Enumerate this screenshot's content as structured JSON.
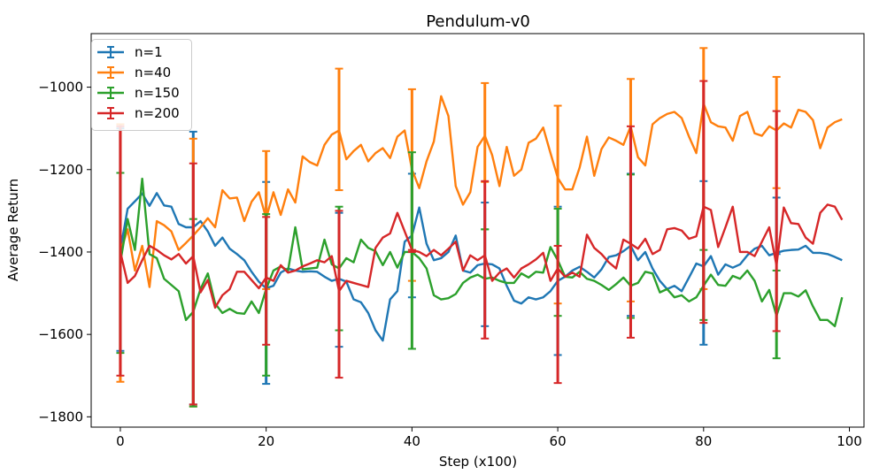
{
  "chart_data": {
    "type": "line",
    "title": "Pendulum-v0",
    "xlabel": "Step (x100)",
    "ylabel": "Average Return",
    "xlim": [
      -4,
      102
    ],
    "ylim": [
      -1825,
      -870
    ],
    "xticks": [
      0,
      20,
      40,
      60,
      80,
      100
    ],
    "yticks": [
      -1800,
      -1600,
      -1400,
      -1200,
      -1000
    ],
    "ytick_labels": [
      "−1800",
      "−1600",
      "−1400",
      "−1200",
      "−1000"
    ],
    "legend_position": "top-left",
    "errorbar_x": [
      0,
      10,
      20,
      30,
      40,
      50,
      60,
      70,
      80,
      90
    ],
    "series": [
      {
        "name": "n=1",
        "color": "#1f77b4",
        "x": [
          0,
          1,
          2,
          3,
          4,
          5,
          6,
          7,
          8,
          9,
          10,
          11,
          12,
          13,
          14,
          15,
          16,
          17,
          18,
          19,
          20,
          21,
          22,
          23,
          24,
          25,
          26,
          27,
          28,
          29,
          30,
          31,
          32,
          33,
          34,
          35,
          36,
          37,
          38,
          39,
          40,
          41,
          42,
          43,
          44,
          45,
          46,
          47,
          48,
          49,
          50,
          51,
          52,
          53,
          54,
          55,
          56,
          57,
          58,
          59,
          60,
          61,
          62,
          63,
          64,
          65,
          66,
          67,
          68,
          69,
          70,
          71,
          72,
          73,
          74,
          75,
          76,
          77,
          78,
          79,
          80,
          81,
          82,
          83,
          84,
          85,
          86,
          87,
          88,
          89,
          90,
          91,
          92,
          93,
          94,
          95,
          96,
          97,
          98,
          99
        ],
        "values": [
          -1395,
          -1295,
          -1277,
          -1258,
          -1288,
          -1257,
          -1287,
          -1290,
          -1332,
          -1340,
          -1340,
          -1325,
          -1350,
          -1385,
          -1365,
          -1392,
          -1405,
          -1420,
          -1448,
          -1472,
          -1488,
          -1482,
          -1450,
          -1440,
          -1445,
          -1448,
          -1447,
          -1448,
          -1460,
          -1470,
          -1465,
          -1472,
          -1515,
          -1522,
          -1548,
          -1590,
          -1615,
          -1515,
          -1495,
          -1375,
          -1360,
          -1292,
          -1380,
          -1420,
          -1415,
          -1400,
          -1360,
          -1445,
          -1450,
          -1432,
          -1428,
          -1430,
          -1440,
          -1482,
          -1518,
          -1525,
          -1510,
          -1515,
          -1510,
          -1495,
          -1470,
          -1460,
          -1445,
          -1436,
          -1448,
          -1462,
          -1442,
          -1412,
          -1408,
          -1398,
          -1385,
          -1420,
          -1400,
          -1440,
          -1470,
          -1490,
          -1482,
          -1495,
          -1462,
          -1428,
          -1435,
          -1410,
          -1455,
          -1430,
          -1438,
          -1430,
          -1408,
          -1392,
          -1385,
          -1408,
          -1402,
          -1397,
          -1395,
          -1394,
          -1385,
          -1402,
          -1402,
          -1405,
          -1412,
          -1420
        ],
        "err_low": [
          -1640,
          -1770,
          -1720,
          -1630,
          -1510,
          -1580,
          -1650,
          -1555,
          -1625,
          -1405
        ],
        "err_high": [
          -1100,
          -1108,
          -1230,
          -1305,
          -1210,
          -1280,
          -1290,
          -1210,
          -1228,
          -1268
        ]
      },
      {
        "name": "n=40",
        "color": "#ff7f0e",
        "x": [
          0,
          1,
          2,
          3,
          4,
          5,
          6,
          7,
          8,
          9,
          10,
          11,
          12,
          13,
          14,
          15,
          16,
          17,
          18,
          19,
          20,
          21,
          22,
          23,
          24,
          25,
          26,
          27,
          28,
          29,
          30,
          31,
          32,
          33,
          34,
          35,
          36,
          37,
          38,
          39,
          40,
          41,
          42,
          43,
          44,
          45,
          46,
          47,
          48,
          49,
          50,
          51,
          52,
          53,
          54,
          55,
          56,
          57,
          58,
          59,
          60,
          61,
          62,
          63,
          64,
          65,
          66,
          67,
          68,
          69,
          70,
          71,
          72,
          73,
          74,
          75,
          76,
          77,
          78,
          79,
          80,
          81,
          82,
          83,
          84,
          85,
          86,
          87,
          88,
          89,
          90,
          91,
          92,
          93,
          94,
          95,
          96,
          97,
          98,
          99
        ],
        "values": [
          -1400,
          -1345,
          -1445,
          -1385,
          -1485,
          -1325,
          -1335,
          -1350,
          -1395,
          -1378,
          -1360,
          -1340,
          -1318,
          -1340,
          -1250,
          -1270,
          -1268,
          -1325,
          -1278,
          -1255,
          -1318,
          -1255,
          -1310,
          -1248,
          -1280,
          -1168,
          -1182,
          -1190,
          -1140,
          -1115,
          -1105,
          -1175,
          -1155,
          -1140,
          -1180,
          -1160,
          -1148,
          -1172,
          -1120,
          -1105,
          -1200,
          -1245,
          -1180,
          -1132,
          -1022,
          -1070,
          -1240,
          -1285,
          -1255,
          -1145,
          -1118,
          -1165,
          -1240,
          -1145,
          -1215,
          -1200,
          -1135,
          -1125,
          -1098,
          -1160,
          -1220,
          -1248,
          -1248,
          -1195,
          -1120,
          -1215,
          -1150,
          -1122,
          -1130,
          -1140,
          -1095,
          -1170,
          -1190,
          -1090,
          -1075,
          -1065,
          -1060,
          -1075,
          -1120,
          -1160,
          -1040,
          -1085,
          -1095,
          -1098,
          -1130,
          -1070,
          -1060,
          -1112,
          -1118,
          -1095,
          -1105,
          -1088,
          -1098,
          -1055,
          -1060,
          -1080,
          -1148,
          -1098,
          -1085,
          -1078
        ],
        "err_low": [
          -1715,
          -1775,
          -1490,
          -1250,
          -1470,
          -1230,
          -1525,
          -1520,
          -1490,
          -1245
        ],
        "err_high": [
          -1090,
          -1125,
          -1155,
          -955,
          -1005,
          -990,
          -1045,
          -980,
          -905,
          -975
        ]
      },
      {
        "name": "n=150",
        "color": "#2ca02c",
        "x": [
          0,
          1,
          2,
          3,
          4,
          5,
          6,
          7,
          8,
          9,
          10,
          11,
          12,
          13,
          14,
          15,
          16,
          17,
          18,
          19,
          20,
          21,
          22,
          23,
          24,
          25,
          26,
          27,
          28,
          29,
          30,
          31,
          32,
          33,
          34,
          35,
          36,
          37,
          38,
          39,
          40,
          41,
          42,
          43,
          44,
          45,
          46,
          47,
          48,
          49,
          50,
          51,
          52,
          53,
          54,
          55,
          56,
          57,
          58,
          59,
          60,
          61,
          62,
          63,
          64,
          65,
          66,
          67,
          68,
          69,
          70,
          71,
          72,
          73,
          74,
          75,
          76,
          77,
          78,
          79,
          80,
          81,
          82,
          83,
          84,
          85,
          86,
          87,
          88,
          89,
          90,
          91,
          92,
          93,
          94,
          95,
          96,
          97,
          98,
          99
        ],
        "values": [
          -1425,
          -1320,
          -1395,
          -1222,
          -1405,
          -1415,
          -1465,
          -1480,
          -1495,
          -1565,
          -1545,
          -1490,
          -1452,
          -1525,
          -1548,
          -1538,
          -1548,
          -1550,
          -1520,
          -1548,
          -1490,
          -1445,
          -1435,
          -1445,
          -1340,
          -1442,
          -1440,
          -1438,
          -1370,
          -1430,
          -1440,
          -1415,
          -1425,
          -1370,
          -1390,
          -1398,
          -1432,
          -1400,
          -1438,
          -1400,
          -1400,
          -1415,
          -1440,
          -1505,
          -1515,
          -1512,
          -1502,
          -1475,
          -1462,
          -1455,
          -1465,
          -1462,
          -1470,
          -1475,
          -1475,
          -1452,
          -1462,
          -1448,
          -1450,
          -1388,
          -1420,
          -1460,
          -1462,
          -1448,
          -1465,
          -1470,
          -1480,
          -1492,
          -1478,
          -1462,
          -1482,
          -1475,
          -1448,
          -1452,
          -1498,
          -1490,
          -1510,
          -1505,
          -1520,
          -1510,
          -1482,
          -1455,
          -1480,
          -1482,
          -1458,
          -1465,
          -1445,
          -1470,
          -1520,
          -1492,
          -1555,
          -1500,
          -1500,
          -1508,
          -1493,
          -1532,
          -1565,
          -1565,
          -1580,
          -1510
        ],
        "err_low": [
          -1645,
          -1775,
          -1700,
          -1590,
          -1635,
          -1345,
          -1555,
          -1560,
          -1565,
          -1658
        ],
        "err_high": [
          -1208,
          -1320,
          -1308,
          -1290,
          -1158,
          -1345,
          -1295,
          -1212,
          -1395,
          -1445
        ]
      },
      {
        "name": "n=200",
        "color": "#d62728",
        "x": [
          0,
          1,
          2,
          3,
          4,
          5,
          6,
          7,
          8,
          9,
          10,
          11,
          12,
          13,
          14,
          15,
          16,
          17,
          18,
          19,
          20,
          21,
          22,
          23,
          24,
          25,
          26,
          27,
          28,
          29,
          30,
          31,
          32,
          33,
          34,
          35,
          36,
          37,
          38,
          39,
          40,
          41,
          42,
          43,
          44,
          45,
          46,
          47,
          48,
          49,
          50,
          51,
          52,
          53,
          54,
          55,
          56,
          57,
          58,
          59,
          60,
          61,
          62,
          63,
          64,
          65,
          66,
          67,
          68,
          69,
          70,
          71,
          72,
          73,
          74,
          75,
          76,
          77,
          78,
          79,
          80,
          81,
          82,
          83,
          84,
          85,
          86,
          87,
          88,
          89,
          90,
          91,
          92,
          93,
          94,
          95,
          96,
          97,
          98,
          99
        ],
        "values": [
          -1400,
          -1475,
          -1458,
          -1420,
          -1385,
          -1395,
          -1408,
          -1418,
          -1405,
          -1428,
          -1410,
          -1498,
          -1468,
          -1535,
          -1505,
          -1490,
          -1448,
          -1448,
          -1468,
          -1488,
          -1462,
          -1470,
          -1432,
          -1450,
          -1445,
          -1435,
          -1428,
          -1420,
          -1425,
          -1410,
          -1495,
          -1470,
          -1475,
          -1480,
          -1485,
          -1390,
          -1365,
          -1355,
          -1305,
          -1350,
          -1395,
          -1400,
          -1410,
          -1395,
          -1408,
          -1392,
          -1375,
          -1445,
          -1408,
          -1420,
          -1408,
          -1470,
          -1450,
          -1440,
          -1462,
          -1440,
          -1430,
          -1418,
          -1402,
          -1470,
          -1440,
          -1460,
          -1450,
          -1460,
          -1358,
          -1390,
          -1405,
          -1425,
          -1440,
          -1370,
          -1380,
          -1392,
          -1368,
          -1405,
          -1395,
          -1345,
          -1342,
          -1348,
          -1368,
          -1362,
          -1290,
          -1298,
          -1388,
          -1340,
          -1290,
          -1400,
          -1400,
          -1410,
          -1375,
          -1340,
          -1432,
          -1292,
          -1330,
          -1332,
          -1365,
          -1380,
          -1305,
          -1285,
          -1290,
          -1322
        ],
        "err_low": [
          -1700,
          -1770,
          -1625,
          -1705,
          -1400,
          -1610,
          -1718,
          -1608,
          -1572,
          -1592
        ],
        "err_high": [
          -1095,
          -1185,
          -1315,
          -1300,
          -1395,
          -1228,
          -1385,
          -1095,
          -985,
          -1058
        ]
      }
    ]
  }
}
